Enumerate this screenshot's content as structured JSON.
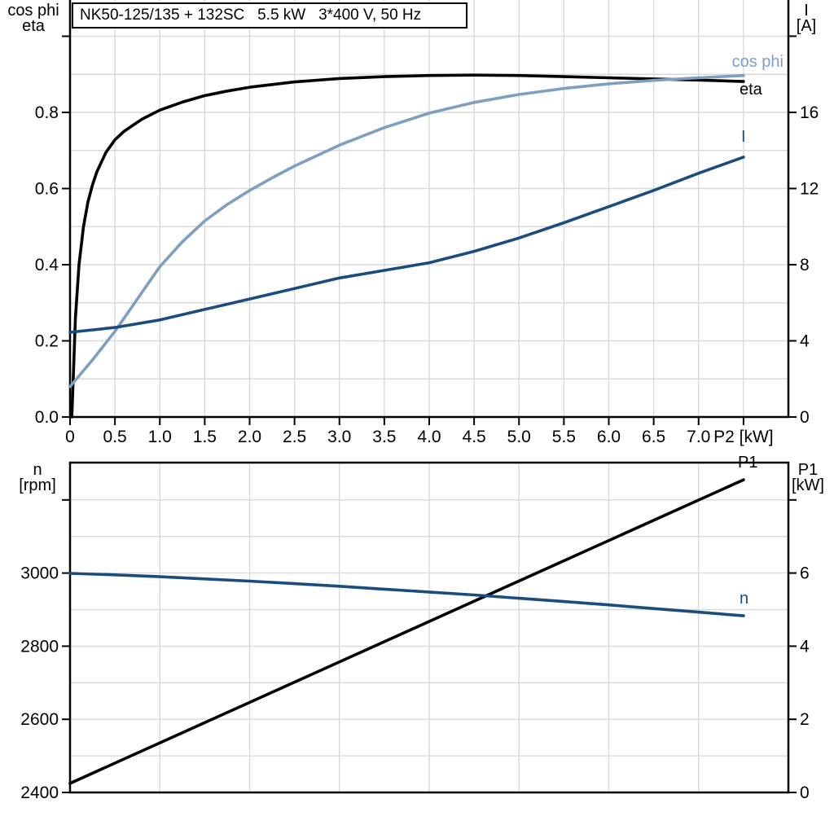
{
  "colors": {
    "frame": "#000000",
    "grid": "#d9d9d9",
    "eta_black": "#000000",
    "cosphi_lightblue": "#7f9fc0",
    "current_darkblue": "#1a4c7d"
  },
  "chart_data": [
    {
      "type": "line",
      "title": "NK50-125/135 + 132SC   5.5 kW   3*400 V, 50 Hz",
      "x_axis": {
        "title": "P2 [kW]",
        "min": 0,
        "max": 8,
        "grid_every": 0.5,
        "ticks": [
          {
            "value": 0,
            "label": "0"
          },
          {
            "value": 0.5,
            "label": "0.5"
          },
          {
            "value": 1,
            "label": "1.0"
          },
          {
            "value": 1.5,
            "label": "1.5"
          },
          {
            "value": 2,
            "label": "2.0"
          },
          {
            "value": 2.5,
            "label": "2.5"
          },
          {
            "value": 3,
            "label": "3.0"
          },
          {
            "value": 3.5,
            "label": "3.5"
          },
          {
            "value": 4,
            "label": "4.0"
          },
          {
            "value": 4.5,
            "label": "4.5"
          },
          {
            "value": 5,
            "label": "5.0"
          },
          {
            "value": 5.5,
            "label": "5.5"
          },
          {
            "value": 6,
            "label": "6.0"
          },
          {
            "value": 6.5,
            "label": "6.5"
          },
          {
            "value": 7,
            "label": "7.0"
          },
          {
            "value": 7.5,
            "label": "P2 [kW]"
          }
        ]
      },
      "left_axis": {
        "title_lines": [
          "cos phi",
          "eta"
        ],
        "min": 0,
        "max": 1.0952,
        "grid_every": 0.1,
        "ticks": [
          {
            "value": 0,
            "label": "0.0"
          },
          {
            "value": 0.2,
            "label": "0.2"
          },
          {
            "value": 0.4,
            "label": "0.4"
          },
          {
            "value": 0.6,
            "label": "0.6"
          },
          {
            "value": 0.8,
            "label": "0.8"
          },
          {
            "value": 1.0,
            "label": ""
          }
        ]
      },
      "right_axis": {
        "title_lines": [
          "I",
          "[A]"
        ],
        "min": 0,
        "max": 21.9,
        "grid_every": 2,
        "ticks": [
          {
            "value": 0,
            "label": "0"
          },
          {
            "value": 4,
            "label": "4"
          },
          {
            "value": 8,
            "label": "8"
          },
          {
            "value": 12,
            "label": "12"
          },
          {
            "value": 16,
            "label": "16"
          },
          {
            "value": 20,
            "label": ""
          }
        ]
      },
      "series": [
        {
          "name": "eta",
          "axis": "left",
          "color": "#000000",
          "points": [
            [
              0.02,
              0
            ],
            [
              0.06,
              0.26
            ],
            [
              0.1,
              0.4
            ],
            [
              0.15,
              0.5
            ],
            [
              0.2,
              0.565
            ],
            [
              0.25,
              0.61
            ],
            [
              0.3,
              0.645
            ],
            [
              0.4,
              0.695
            ],
            [
              0.5,
              0.728
            ],
            [
              0.6,
              0.75
            ],
            [
              0.8,
              0.782
            ],
            [
              1.0,
              0.806
            ],
            [
              1.25,
              0.827
            ],
            [
              1.5,
              0.844
            ],
            [
              1.75,
              0.856
            ],
            [
              2.0,
              0.866
            ],
            [
              2.5,
              0.88
            ],
            [
              3.0,
              0.889
            ],
            [
              3.5,
              0.894
            ],
            [
              4.0,
              0.897
            ],
            [
              4.5,
              0.898
            ],
            [
              5.0,
              0.897
            ],
            [
              5.5,
              0.894
            ],
            [
              6.0,
              0.891
            ],
            [
              6.5,
              0.888
            ],
            [
              7.0,
              0.885
            ],
            [
              7.5,
              0.881
            ]
          ]
        },
        {
          "name": "cos phi",
          "axis": "left",
          "color": "#7f9fc0",
          "points": [
            [
              0,
              0.08
            ],
            [
              0.25,
              0.15
            ],
            [
              0.5,
              0.225
            ],
            [
              0.75,
              0.31
            ],
            [
              1.0,
              0.395
            ],
            [
              1.25,
              0.46
            ],
            [
              1.5,
              0.515
            ],
            [
              1.75,
              0.558
            ],
            [
              2.0,
              0.595
            ],
            [
              2.25,
              0.628
            ],
            [
              2.5,
              0.659
            ],
            [
              3.0,
              0.714
            ],
            [
              3.5,
              0.76
            ],
            [
              4.0,
              0.798
            ],
            [
              4.5,
              0.826
            ],
            [
              5.0,
              0.847
            ],
            [
              5.5,
              0.863
            ],
            [
              6.0,
              0.875
            ],
            [
              6.5,
              0.884
            ],
            [
              7.0,
              0.891
            ],
            [
              7.5,
              0.897
            ]
          ]
        },
        {
          "name": "I",
          "axis": "right",
          "color": "#1a4c7d",
          "points": [
            [
              0,
              4.45
            ],
            [
              0.5,
              4.7
            ],
            [
              1.0,
              5.1
            ],
            [
              1.5,
              5.65
            ],
            [
              2.0,
              6.2
            ],
            [
              2.5,
              6.75
            ],
            [
              3.0,
              7.3
            ],
            [
              3.5,
              7.7
            ],
            [
              4.0,
              8.1
            ],
            [
              4.5,
              8.7
            ],
            [
              5.0,
              9.4
            ],
            [
              5.5,
              10.2
            ],
            [
              6.0,
              11.05
            ],
            [
              6.5,
              11.9
            ],
            [
              7.0,
              12.8
            ],
            [
              7.5,
              13.65
            ]
          ]
        }
      ]
    },
    {
      "type": "line",
      "x_axis": {
        "title": "",
        "min": 0,
        "max": 8,
        "grid_every": 1,
        "ticks": []
      },
      "left_axis": {
        "title_lines": [
          "n",
          "[rpm]"
        ],
        "min": 2400,
        "max": 3302,
        "grid_every": 100,
        "ticks": [
          {
            "value": 2400,
            "label": "2400"
          },
          {
            "value": 2600,
            "label": "2600"
          },
          {
            "value": 2800,
            "label": "2800"
          },
          {
            "value": 3000,
            "label": "3000"
          },
          {
            "value": 3200,
            "label": ""
          }
        ]
      },
      "right_axis": {
        "title_lines": [
          "P1",
          "[kW]"
        ],
        "min": 0,
        "max": 9.02,
        "grid_every": 1,
        "ticks": [
          {
            "value": 0,
            "label": "0"
          },
          {
            "value": 2,
            "label": "2"
          },
          {
            "value": 4,
            "label": "4"
          },
          {
            "value": 6,
            "label": "6"
          },
          {
            "value": 8,
            "label": ""
          }
        ]
      },
      "series": [
        {
          "name": "P1",
          "axis": "right",
          "color": "#000000",
          "points": [
            [
              0,
              0.25
            ],
            [
              7.5,
              8.55
            ]
          ]
        },
        {
          "name": "n",
          "axis": "left",
          "color": "#1a4c7d",
          "points": [
            [
              0,
              2999
            ],
            [
              0.5,
              2995
            ],
            [
              1,
              2990
            ],
            [
              1.5,
              2984
            ],
            [
              2,
              2978
            ],
            [
              2.5,
              2971
            ],
            [
              3,
              2964
            ],
            [
              3.5,
              2956
            ],
            [
              4,
              2948
            ],
            [
              4.5,
              2940
            ],
            [
              5,
              2931
            ],
            [
              5.5,
              2922
            ],
            [
              6,
              2913
            ],
            [
              6.5,
              2903
            ],
            [
              7,
              2893
            ],
            [
              7.5,
              2883
            ]
          ]
        }
      ]
    }
  ]
}
